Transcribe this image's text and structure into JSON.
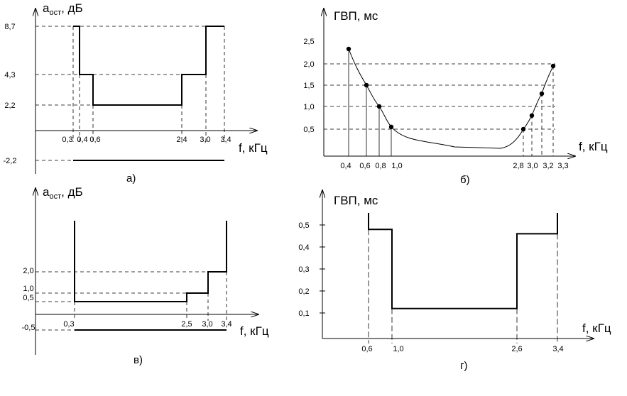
{
  "chart_data": [
    {
      "type": "line",
      "caption": "а)",
      "ylabel": "a",
      "ylabel_sub": "ост",
      "ylabel_unit": ", дБ",
      "xlabel": "f, кГц",
      "x_ticks": [
        "0,3",
        "0,4",
        "0,6",
        "2,4",
        "3,0",
        "3,4"
      ],
      "y_ticks": [
        "8,7",
        "4,3",
        "2,2",
        "-2,2"
      ],
      "series": [
        {
          "x": [
            0.3,
            0.3,
            0.4,
            0.4,
            0.6,
            0.6,
            2.4,
            2.4,
            3.0,
            3.0,
            3.4
          ],
          "y": [
            8.7,
            8.7,
            8.7,
            4.3,
            4.3,
            2.2,
            2.2,
            4.3,
            4.3,
            8.7,
            8.7
          ]
        },
        {
          "x": [
            0.3,
            3.4
          ],
          "y": [
            -2.2,
            -2.2
          ]
        }
      ]
    },
    {
      "type": "line",
      "caption": "б)",
      "ylabel": "ГВП, мс",
      "xlabel": "f, кГц",
      "x_ticks": [
        "0,4",
        "0,6",
        "0,8",
        "1,0",
        "2,8",
        "3,0",
        "3,2",
        "3,3"
      ],
      "y_ticks": [
        "2,5",
        "2,0",
        "1,5",
        "1,0",
        "0,5"
      ],
      "points": [
        {
          "x": 0.4,
          "y": 2.35
        },
        {
          "x": 0.6,
          "y": 1.5
        },
        {
          "x": 0.8,
          "y": 1.0
        },
        {
          "x": 1.0,
          "y": 0.55
        },
        {
          "x": 2.8,
          "y": 0.5
        },
        {
          "x": 3.0,
          "y": 0.8
        },
        {
          "x": 3.2,
          "y": 1.3
        },
        {
          "x": 3.3,
          "y": 1.95
        }
      ]
    },
    {
      "type": "line",
      "caption": "в)",
      "ylabel": "a",
      "ylabel_sub": "ост",
      "ylabel_unit": ", дБ",
      "xlabel": "f, кГц",
      "x_ticks": [
        "0,3",
        "2,5",
        "3,0",
        "3,4"
      ],
      "y_ticks": [
        "2,0",
        "1,0",
        "0,5",
        "-0,5"
      ],
      "series": [
        {
          "x": [
            0.3,
            0.3,
            2.5,
            2.5,
            3.0,
            3.0,
            3.4,
            3.4
          ],
          "y": [
            "up",
            0.5,
            0.5,
            1.0,
            1.0,
            2.0,
            2.0,
            "up"
          ]
        },
        {
          "x": [
            0.3,
            3.4
          ],
          "y": [
            -0.5,
            -0.5
          ]
        }
      ]
    },
    {
      "type": "line",
      "caption": "г)",
      "ylabel": "ГВП, мс",
      "xlabel": "f, кГц",
      "x_ticks": [
        "0,6",
        "1,0",
        "2,6",
        "3,4"
      ],
      "y_ticks": [
        "0,5",
        "0,4",
        "0,3",
        "0,2",
        "0,1"
      ],
      "series": [
        {
          "x": [
            0.6,
            0.6,
            1.0,
            1.0,
            2.6,
            2.6,
            3.4,
            3.4
          ],
          "y": [
            "up",
            0.48,
            0.48,
            0.12,
            0.12,
            0.46,
            0.46,
            "up"
          ]
        }
      ]
    }
  ]
}
